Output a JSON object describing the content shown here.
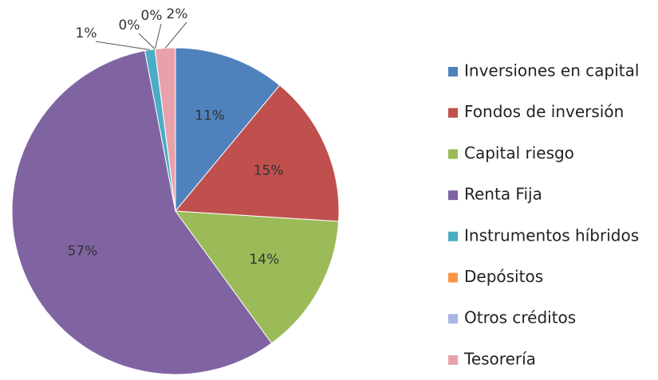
{
  "chart_data": {
    "type": "pie",
    "categories": [
      "Inversiones en capital",
      "Fondos de inversión",
      "Capital riesgo",
      "Renta Fija",
      "Instrumentos híbridos",
      "Depósitos",
      "Otros créditos",
      "Tesorería"
    ],
    "values": [
      11,
      15,
      14,
      57,
      1,
      0,
      0,
      2
    ],
    "value_labels": [
      "11%",
      "15%",
      "14%",
      "57%",
      "1%",
      "0%",
      "0%",
      "2%"
    ],
    "colors": [
      "#4f81bd",
      "#c0504d",
      "#9bbb59",
      "#8064a2",
      "#4bacc6",
      "#f79646",
      "#a9b7e3",
      "#e8a1aa"
    ],
    "legend": "right"
  }
}
